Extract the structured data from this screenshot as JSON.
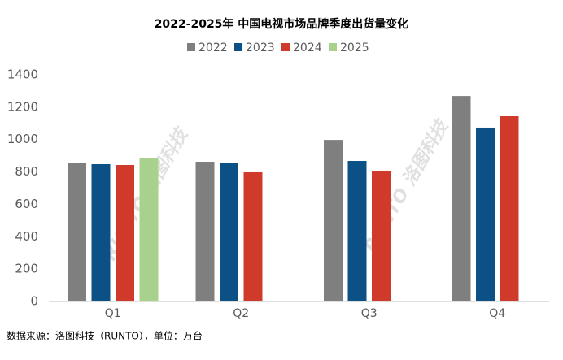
{
  "chart_data": {
    "type": "bar",
    "title": "2022-2025年 中国电视市场品牌季度出货量变化",
    "categories": [
      "Q1",
      "Q2",
      "Q3",
      "Q4"
    ],
    "series": [
      {
        "name": "2022",
        "color": "#7f7f7f",
        "values": [
          853,
          863,
          998,
          1269
        ]
      },
      {
        "name": "2023",
        "color": "#0b5186",
        "values": [
          848,
          858,
          868,
          1074
        ]
      },
      {
        "name": "2024",
        "color": "#cf3a2b",
        "values": [
          843,
          798,
          808,
          1144
        ]
      },
      {
        "name": "2025",
        "color": "#a9d18e",
        "values": [
          883,
          null,
          null,
          null
        ]
      }
    ],
    "ylim": [
      0,
      1400
    ],
    "yticks": [
      0,
      200,
      400,
      600,
      800,
      1000,
      1200,
      1400
    ],
    "grid": false,
    "legend": "top",
    "watermark": "RUNTO 洛图科技",
    "source": "数据来源：洛图科技（RUNTO），单位：万台"
  }
}
